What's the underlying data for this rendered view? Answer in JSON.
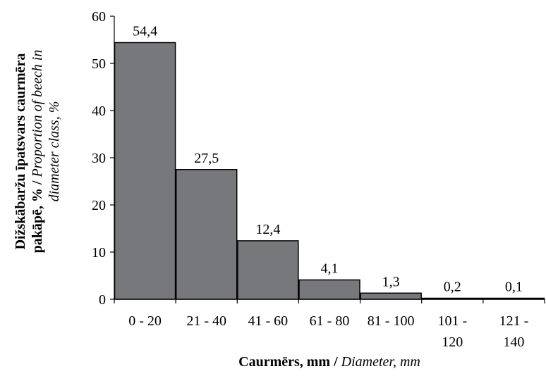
{
  "chart_data": {
    "type": "bar",
    "categories": [
      "0 - 20",
      "21 - 40",
      "41 - 60",
      "61 - 80",
      "81 - 100",
      "101 - 120",
      "121 - 140"
    ],
    "category_lines": [
      [
        "0 - 20"
      ],
      [
        "21 - 40"
      ],
      [
        "41 - 60"
      ],
      [
        "61 - 80"
      ],
      [
        "81 - 100"
      ],
      [
        "101 -",
        "120"
      ],
      [
        "121 -",
        "140"
      ]
    ],
    "values": [
      54.4,
      27.5,
      12.4,
      4.1,
      1.3,
      0.2,
      0.1
    ],
    "data_labels": [
      "54,4",
      "27,5",
      "12,4",
      "4,1",
      "1,3",
      "0,2",
      "0,1"
    ],
    "ylim": [
      0,
      60
    ],
    "yticks": [
      0,
      10,
      20,
      30,
      40,
      50,
      60
    ],
    "grid": false,
    "legend": "none",
    "bar_color": "#77787b",
    "ylabel": {
      "line1_bold": "Dižskābaržu īpatsvars caurmēra",
      "line2_bold": "pakāpē, % / ",
      "line2_italic": "Proportion of beech in",
      "line3_italic": "diameter class, %"
    },
    "xlabel": {
      "bold": "Caurmērs, mm / ",
      "italic": "Diameter, mm"
    }
  }
}
